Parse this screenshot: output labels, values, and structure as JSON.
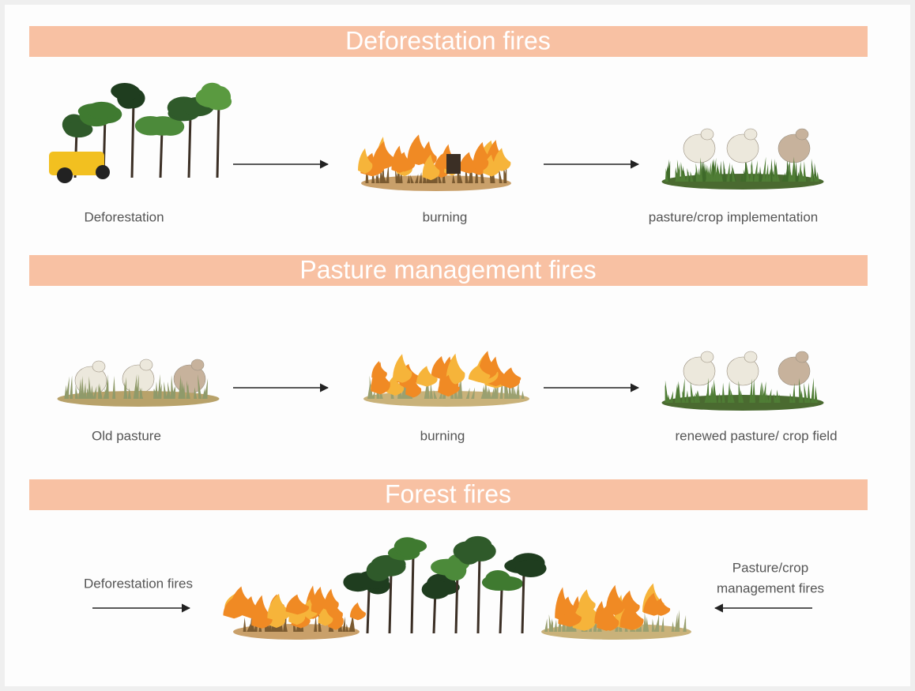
{
  "sections": [
    {
      "title": "Deforestation fires",
      "steps": [
        {
          "label": "Deforestation"
        },
        {
          "label": "burning"
        },
        {
          "label": "pasture/crop implementation"
        }
      ]
    },
    {
      "title": "Pasture management fires",
      "steps": [
        {
          "label": "Old pasture"
        },
        {
          "label": "burning"
        },
        {
          "label": "renewed pasture/ crop field"
        }
      ]
    },
    {
      "title": "Forest fires",
      "sources": [
        {
          "lines": [
            "Deforestation fires"
          ]
        },
        {
          "lines": [
            "Pasture/crop",
            "management fires"
          ]
        }
      ]
    }
  ]
}
